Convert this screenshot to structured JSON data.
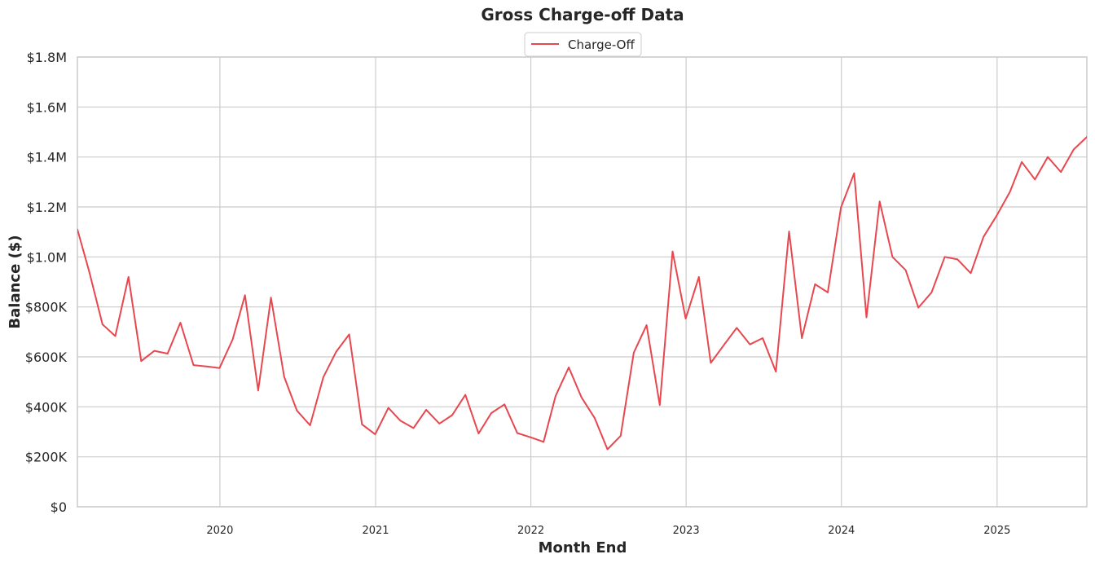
{
  "chart_data": {
    "type": "line",
    "title": "Gross Charge-off Data",
    "xlabel": "Month End",
    "ylabel": "Balance ($)",
    "xlim": [
      "2019-01-31",
      "2025-07-31"
    ],
    "ylim": [
      0,
      1800000
    ],
    "yticks": [
      0,
      200000,
      400000,
      600000,
      800000,
      1000000,
      1200000,
      1400000,
      1600000,
      1800000
    ],
    "ytick_labels": [
      "$0",
      "$200K",
      "$400K",
      "$600K",
      "$800K",
      "$1.0M",
      "$1.2M",
      "$1.4M",
      "$1.6M",
      "$1.8M"
    ],
    "xticks": [
      "2020-01-01",
      "2021-01-01",
      "2022-01-01",
      "2023-01-01",
      "2024-01-01",
      "2025-01-01"
    ],
    "xtick_labels": [
      "2020",
      "2021",
      "2022",
      "2023",
      "2024",
      "2025"
    ],
    "grid": true,
    "legend": "top-center",
    "series": [
      {
        "name": "Charge-Off",
        "color": "#e8474f",
        "x": [
          "2019-01-31",
          "2019-02-28",
          "2019-03-31",
          "2019-04-30",
          "2019-05-31",
          "2019-06-30",
          "2019-07-31",
          "2019-08-31",
          "2019-09-30",
          "2019-10-31",
          "2019-11-30",
          "2019-12-31",
          "2020-01-31",
          "2020-02-29",
          "2020-03-31",
          "2020-04-30",
          "2020-05-31",
          "2020-06-30",
          "2020-07-31",
          "2020-08-31",
          "2020-09-30",
          "2020-10-31",
          "2020-11-30",
          "2020-12-31",
          "2021-01-31",
          "2021-02-28",
          "2021-03-31",
          "2021-04-30",
          "2021-05-31",
          "2021-06-30",
          "2021-07-31",
          "2021-08-31",
          "2021-09-30",
          "2021-10-31",
          "2021-11-30",
          "2021-12-31",
          "2022-01-31",
          "2022-02-28",
          "2022-03-31",
          "2022-04-30",
          "2022-05-31",
          "2022-06-30",
          "2022-07-31",
          "2022-08-31",
          "2022-09-30",
          "2022-10-31",
          "2022-11-30",
          "2022-12-31",
          "2023-01-31",
          "2023-02-28",
          "2023-03-31",
          "2023-04-30",
          "2023-05-31",
          "2023-06-30",
          "2023-07-31",
          "2023-08-31",
          "2023-09-30",
          "2023-10-31",
          "2023-11-30",
          "2023-12-31",
          "2024-01-31",
          "2024-02-29",
          "2024-03-31",
          "2024-04-30",
          "2024-05-31",
          "2024-06-30",
          "2024-07-31",
          "2024-08-31",
          "2024-09-30",
          "2024-10-31",
          "2024-11-30",
          "2024-12-31",
          "2025-01-31",
          "2025-02-28",
          "2025-03-31",
          "2025-04-30",
          "2025-05-31",
          "2025-06-30",
          "2025-07-31"
        ],
        "values": [
          1110000,
          940000,
          730000,
          683000,
          920000,
          583000,
          624000,
          613000,
          737000,
          567000,
          562000,
          555000,
          670000,
          847000,
          465000,
          837000,
          520000,
          385000,
          326000,
          518000,
          620000,
          690000,
          330000,
          290000,
          396000,
          345000,
          315000,
          388000,
          333000,
          367000,
          448000,
          293000,
          375000,
          410000,
          295000,
          278000,
          260000,
          443000,
          558000,
          438000,
          355000,
          230000,
          284000,
          617000,
          727000,
          407000,
          1022000,
          753000,
          920000,
          576000,
          648000,
          716000,
          650000,
          675000,
          541000,
          1102000,
          675000,
          891000,
          858000,
          1198000,
          1335000,
          758000,
          1222000,
          1000000,
          947000,
          797000,
          858000,
          1000000,
          990000,
          935000,
          1080000,
          1165000,
          1260000,
          1380000,
          1310000,
          1400000,
          1340000,
          1430000,
          1480000
        ]
      }
    ]
  }
}
